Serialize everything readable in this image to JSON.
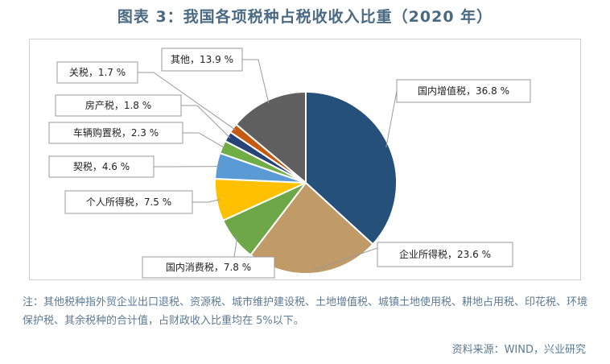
{
  "title": "图表 3：我国各项税种占税收收入比重（2020 年）",
  "note": "注：其他税种指外贸企业出口退税、资源税、城市维护建设税、土地增值税、城镇土地使用税、耕地占用税、印花税、环境保护税、其余税种的合计值，占财政收入比重均在 5%以下。",
  "source": "资料来源：WIND，兴业研究",
  "chart_data": {
    "type": "pie",
    "unit": "%",
    "slices": [
      {
        "name": "国内增值税",
        "value": 36.8,
        "label": "国内增值税，36.8 %",
        "color": "#24507a"
      },
      {
        "name": "企业所得税",
        "value": 23.6,
        "label": "企业所得税，23.6 %",
        "color": "#c09a67"
      },
      {
        "name": "国内消费税",
        "value": 7.8,
        "label": "国内消费税，7.8 %",
        "color": "#6ea747"
      },
      {
        "name": "个人所得税",
        "value": 7.5,
        "label": "个人所得税，7.5 %",
        "color": "#ffc000"
      },
      {
        "name": "契税",
        "value": 4.6,
        "label": "契税，4.6 %",
        "color": "#5b9bd5"
      },
      {
        "name": "车辆购置税",
        "value": 2.3,
        "label": "车辆购置税，2.3 %",
        "color": "#70ad47"
      },
      {
        "name": "房产税",
        "value": 1.8,
        "label": "房产税，1.8 %",
        "color": "#264478"
      },
      {
        "name": "关税",
        "value": 1.7,
        "label": "关税，1.7 %",
        "color": "#c55a11"
      },
      {
        "name": "其他",
        "value": 13.9,
        "label": "其他，13.9 %",
        "color": "#5f5f5f"
      }
    ]
  }
}
